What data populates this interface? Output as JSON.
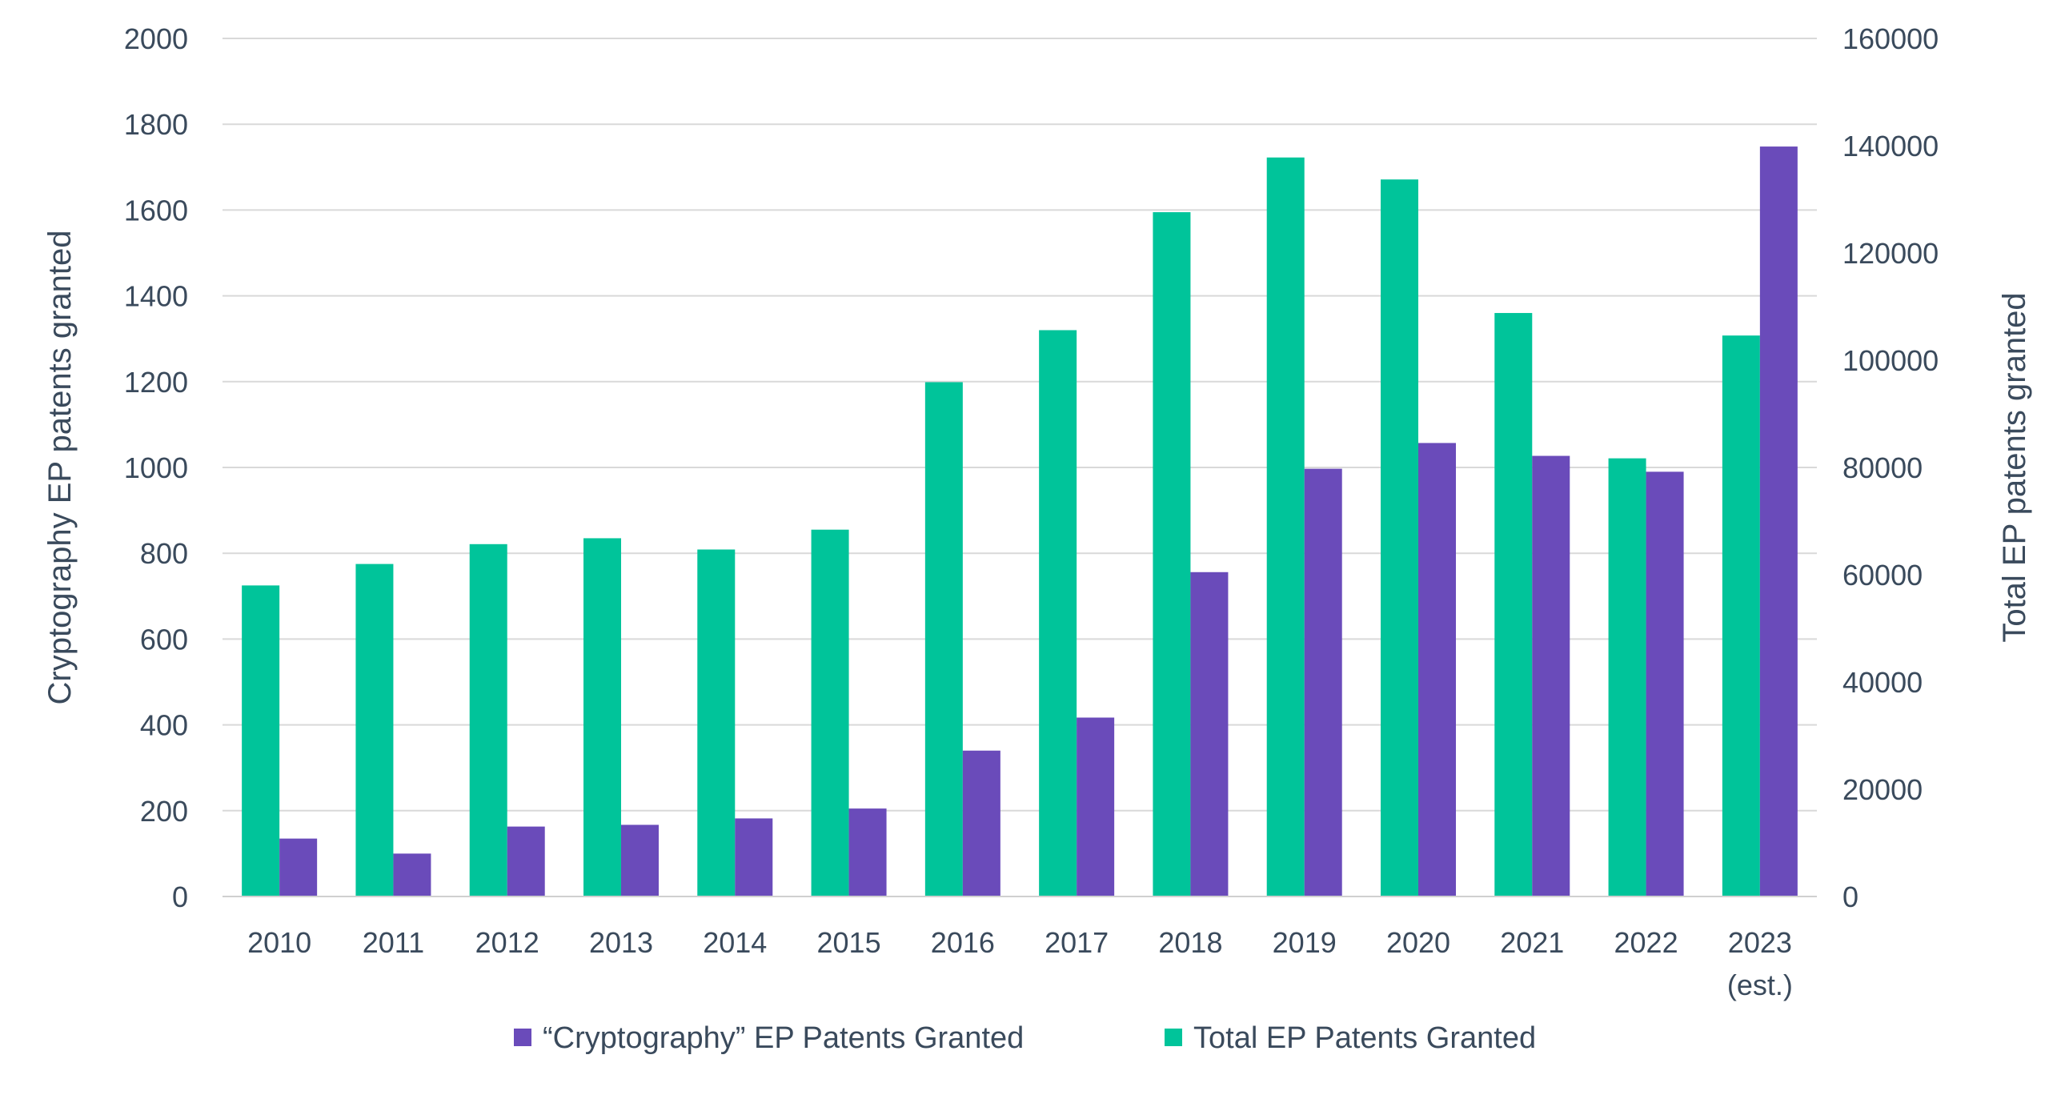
{
  "chart_data": {
    "type": "bar",
    "categories": [
      "2010",
      "2011",
      "2012",
      "2013",
      "2014",
      "2015",
      "2016",
      "2017",
      "2018",
      "2019",
      "2020",
      "2021",
      "2022",
      "2023"
    ],
    "category_sublabels": [
      "",
      "",
      "",
      "",
      "",
      "",
      "",
      "",
      "",
      "",
      "",
      "",
      "",
      "(est.)"
    ],
    "series": [
      {
        "name": "Total EP Patents Granted",
        "axis": "right",
        "color": "#00c49a",
        "values": [
          58000,
          62000,
          65700,
          66800,
          64700,
          68400,
          95900,
          105600,
          127600,
          137800,
          133700,
          108800,
          81700,
          104600
        ]
      },
      {
        "name": "“Cryptography” EP Patents Granted",
        "axis": "left",
        "color": "#6a4bba",
        "values": [
          135,
          100,
          163,
          167,
          182,
          205,
          340,
          417,
          756,
          997,
          1057,
          1027,
          990,
          1748
        ]
      }
    ],
    "legend_order": [
      1,
      0
    ],
    "ylabel": "Cryptography EP patents granted",
    "y2label": "Total EP patents granted",
    "ylim": [
      0,
      2000
    ],
    "y2lim": [
      0,
      160000
    ],
    "yticks": [
      0,
      200,
      400,
      600,
      800,
      1000,
      1200,
      1400,
      1600,
      1800,
      2000
    ],
    "y2ticks": [
      0,
      20000,
      40000,
      60000,
      80000,
      100000,
      120000,
      140000,
      160000
    ],
    "grid": true,
    "legend_position": "bottom"
  }
}
